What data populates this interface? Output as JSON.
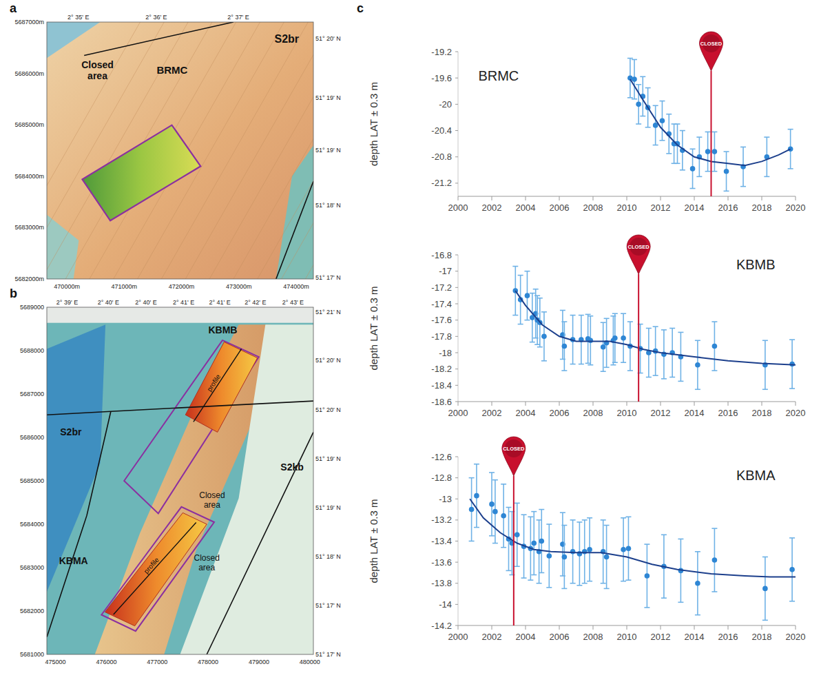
{
  "panel_labels": [
    "a",
    "b",
    "c"
  ],
  "maps": [
    {
      "xlim": [
        469650,
        474300
      ],
      "ylim": [
        5682000,
        5687000
      ],
      "xticks": [
        {
          "value": 470000,
          "label": "470000m"
        },
        {
          "value": 471000,
          "label": "471000m"
        },
        {
          "value": 472000,
          "label": "472000m"
        },
        {
          "value": 473000,
          "label": "473000m"
        },
        {
          "value": 474000,
          "label": "474000m"
        }
      ],
      "yticks": [
        {
          "value": 5682000,
          "label": "5682000m"
        },
        {
          "value": 5683000,
          "label": "5683000m"
        },
        {
          "value": 5684000,
          "label": "5684000m"
        },
        {
          "value": 5685000,
          "label": "5685000m"
        },
        {
          "value": 5686000,
          "label": "5686000m"
        },
        {
          "value": 5687000,
          "label": "5687000m"
        }
      ],
      "top_ticks": [
        {
          "value": 470200,
          "label": "2° 35' E"
        },
        {
          "value": 471560,
          "label": "2° 36' E"
        },
        {
          "value": 472990,
          "label": "2° 37' E"
        }
      ],
      "right_ticks": [
        {
          "value": 5686680,
          "label": "51° 20' N"
        },
        {
          "value": 5685530,
          "label": "51° 19' N"
        },
        {
          "value": 5684510,
          "label": "51° 19' N"
        },
        {
          "value": 5683430,
          "label": "51° 18' N"
        },
        {
          "value": 5682030,
          "label": "51° 17' N"
        }
      ],
      "labels": [
        "S2br",
        "BRMC",
        "Closed area"
      ]
    },
    {
      "xlim": [
        474830,
        480070
      ],
      "ylim": [
        5681000,
        5689000
      ],
      "xticks": [
        475000,
        476000,
        477000,
        478000,
        479000,
        480000
      ],
      "yticks": [
        5681000,
        5682000,
        5683000,
        5684000,
        5685000,
        5686000,
        5687000,
        5688000,
        5689000
      ],
      "top_ticks": [
        {
          "value": 475230,
          "label": "2° 39' E"
        },
        {
          "value": 476040,
          "label": "2° 40' E"
        },
        {
          "value": 476780,
          "label": "2° 40' E"
        },
        {
          "value": 477520,
          "label": "2° 41' E"
        },
        {
          "value": 478230,
          "label": "2° 41' E"
        },
        {
          "value": 478930,
          "label": "2° 42' E"
        },
        {
          "value": 479670,
          "label": "2° 43' E"
        }
      ],
      "right_ticks": [
        {
          "value": 5688890,
          "label": "51° 21' N"
        },
        {
          "value": 5687770,
          "label": "51° 20' N"
        },
        {
          "value": 5686640,
          "label": "51° 20' N"
        },
        {
          "value": 5685510,
          "label": "51° 19' N"
        },
        {
          "value": 5684380,
          "label": "51° 19' N"
        },
        {
          "value": 5683260,
          "label": "51° 18' N"
        },
        {
          "value": 5682130,
          "label": "51° 17' N"
        },
        {
          "value": 5681000,
          "label": "51° 17' N"
        }
      ],
      "labels": [
        "KBMB",
        "S2br",
        "S2kb",
        "Closed area",
        "KBMA",
        "Closed area",
        "profile",
        "profile"
      ]
    }
  ],
  "chart_data": [
    {
      "type": "scatter",
      "title": "BRMC",
      "y_label": "depth LAT ± 0.3 m",
      "xlim": [
        2000,
        2020
      ],
      "xticks": [
        2000,
        2002,
        2004,
        2006,
        2008,
        2010,
        2012,
        2014,
        2016,
        2018,
        2020
      ],
      "ylim": [
        -21.4,
        -19.2
      ],
      "yticks": [
        -21.2,
        -20.8,
        -20.4,
        -20,
        -19.6,
        -19.2
      ],
      "series": [
        {
          "type": "scatter",
          "marker": "circle",
          "color": "#2e86d4",
          "error": 0.3,
          "x": [
            2010.2,
            2010.45,
            2010.7,
            2010.95,
            2011.25,
            2011.7,
            2012.1,
            2012.5,
            2012.8,
            2013.0,
            2013.3,
            2013.9,
            2014.3,
            2014.8,
            2015.2,
            2015.9,
            2016.9,
            2018.3,
            2019.7
          ],
          "values": [
            -19.6,
            -19.62,
            -20.0,
            -19.88,
            -20.05,
            -20.32,
            -20.25,
            -20.45,
            -20.6,
            -20.6,
            -20.7,
            -20.98,
            -20.8,
            -20.72,
            -20.72,
            -21.02,
            -20.95,
            -20.8,
            -20.68
          ]
        },
        {
          "type": "line",
          "line_style": "solid",
          "color": "#1c3f8c",
          "x": [
            2010.2,
            2011,
            2012,
            2013,
            2014,
            2015,
            2016,
            2017,
            2018,
            2019,
            2019.7
          ],
          "values": [
            -19.62,
            -19.95,
            -20.35,
            -20.62,
            -20.8,
            -20.87,
            -20.9,
            -20.93,
            -20.87,
            -20.77,
            -20.68
          ]
        }
      ],
      "annotations": [
        {
          "x": 2015,
          "text": "CLOSED",
          "color": "#c8102e"
        }
      ]
    },
    {
      "type": "scatter",
      "title": "KBMB",
      "y_label": "depth LAT ± 0.3 m",
      "xlim": [
        2000,
        2020
      ],
      "xticks": [
        2000,
        2002,
        2004,
        2006,
        2008,
        2010,
        2012,
        2014,
        2016,
        2018,
        2020
      ],
      "ylim": [
        -18.6,
        -16.8
      ],
      "yticks": [
        -18.6,
        -18.4,
        -18.2,
        -18,
        -17.8,
        -17.6,
        -17.4,
        -17.2,
        -17,
        -16.8
      ],
      "series": [
        {
          "type": "scatter",
          "marker": "circle",
          "color": "#2e86d4",
          "error": 0.3,
          "x": [
            2003.4,
            2003.7,
            2004.1,
            2004.4,
            2004.6,
            2004.7,
            2004.85,
            2005.1,
            2006.2,
            2006.3,
            2006.8,
            2007.3,
            2007.7,
            2007.85,
            2008.6,
            2008.8,
            2009.2,
            2009.3,
            2009.8,
            2010.2,
            2010.8,
            2011.3,
            2011.7,
            2012.2,
            2012.7,
            2013.2,
            2014.2,
            2015.2,
            2018.2,
            2019.8
          ],
          "values": [
            -17.24,
            -17.35,
            -17.3,
            -17.57,
            -17.52,
            -17.6,
            -17.63,
            -17.8,
            -17.78,
            -17.92,
            -17.84,
            -17.84,
            -17.83,
            -17.85,
            -17.93,
            -17.88,
            -17.85,
            -17.82,
            -17.82,
            -17.92,
            -17.95,
            -18.0,
            -17.98,
            -18.02,
            -18.0,
            -18.05,
            -18.15,
            -17.92,
            -18.15,
            -18.14
          ]
        },
        {
          "type": "line",
          "line_style": "solid",
          "color": "#1c3f8c",
          "x": [
            2003.4,
            2004,
            2005,
            2006,
            2007,
            2008,
            2009,
            2010,
            2011,
            2012,
            2014,
            2016,
            2018,
            2020
          ],
          "values": [
            -17.24,
            -17.42,
            -17.66,
            -17.8,
            -17.86,
            -17.86,
            -17.86,
            -17.9,
            -17.96,
            -18.0,
            -18.05,
            -18.1,
            -18.13,
            -18.15
          ]
        }
      ],
      "annotations": [
        {
          "x": 2010.7,
          "text": "CLOSED",
          "color": "#c8102e"
        }
      ]
    },
    {
      "type": "scatter",
      "title": "KBMA",
      "y_label": "depth LAT ± 0.3 m",
      "xlim": [
        2000,
        2020
      ],
      "xticks": [
        2000,
        2002,
        2004,
        2006,
        2008,
        2010,
        2012,
        2014,
        2016,
        2018,
        2020
      ],
      "ylim": [
        -14.2,
        -12.6
      ],
      "yticks": [
        -14.2,
        -14,
        -13.8,
        -13.6,
        -13.4,
        -13.2,
        -13,
        -12.8,
        -12.6
      ],
      "series": [
        {
          "type": "scatter",
          "marker": "circle",
          "color": "#2e86d4",
          "error": 0.3,
          "x": [
            2000.8,
            2001.1,
            2002.0,
            2002.2,
            2002.7,
            2003.0,
            2003.2,
            2003.5,
            2003.9,
            2004.3,
            2004.5,
            2004.8,
            2004.95,
            2005.4,
            2006.2,
            2006.3,
            2006.8,
            2007.2,
            2007.5,
            2007.8,
            2008.6,
            2008.8,
            2009.8,
            2010.1,
            2011.2,
            2012.2,
            2013.2,
            2014.2,
            2015.2,
            2018.2,
            2019.8
          ],
          "values": [
            -13.1,
            -12.97,
            -13.05,
            -13.12,
            -13.16,
            -13.38,
            -13.42,
            -13.34,
            -13.45,
            -13.47,
            -13.42,
            -13.5,
            -13.4,
            -13.54,
            -13.43,
            -13.55,
            -13.5,
            -13.52,
            -13.5,
            -13.48,
            -13.5,
            -13.55,
            -13.48,
            -13.47,
            -13.73,
            -13.64,
            -13.68,
            -13.8,
            -13.58,
            -13.85,
            -13.67
          ]
        },
        {
          "type": "line",
          "line_style": "solid",
          "color": "#1c3f8c",
          "x": [
            2000.7,
            2001.5,
            2002.5,
            2003.5,
            2004.5,
            2005.5,
            2007,
            2008.5,
            2010,
            2011.5,
            2013,
            2015,
            2017,
            2018.5,
            2020
          ],
          "values": [
            -13.0,
            -13.18,
            -13.32,
            -13.42,
            -13.48,
            -13.5,
            -13.51,
            -13.51,
            -13.55,
            -13.62,
            -13.67,
            -13.71,
            -13.73,
            -13.74,
            -13.74
          ]
        }
      ],
      "annotations": [
        {
          "x": 2003.3,
          "text": "CLOSED",
          "color": "#c8102e"
        }
      ]
    }
  ]
}
